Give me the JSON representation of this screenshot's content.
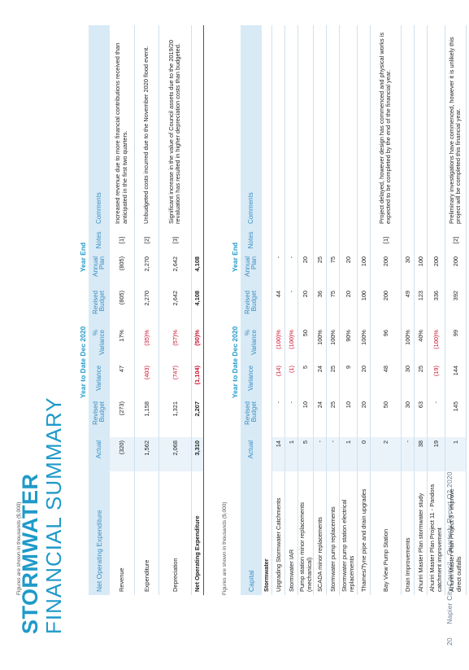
{
  "page": {
    "number": "20",
    "footer": "Napier City Council - Quarterly Report Q2 2020/21",
    "title_line1": "STORMWATER",
    "title_line2": "FINANCIAL SUMMARY"
  },
  "table1": {
    "note": "Figures are shown in thousands ($,000)",
    "group_ytd": "Year to Date Dec 2020",
    "group_ye": "Year End",
    "headers": [
      "Net Operating Expenditure",
      "Actual",
      "Revised Budget",
      "Variance",
      "% Variance",
      "Revised Budget",
      "Annual Plan",
      "Notes",
      "Comments"
    ],
    "rows": [
      {
        "label": "Revenue",
        "actual": "(320)",
        "rev_budget": "(273)",
        "variance": "47",
        "pct": "17%",
        "ye_rev": "(805)",
        "ye_plan": "(805)",
        "notes": "[1]",
        "comment": "Increased revenue due to more financial contributions received than anticipated in the first two quarters."
      },
      {
        "label": "Expenditure",
        "actual": "1,562",
        "rev_budget": "1,158",
        "variance": "(403)",
        "pct": "(35)%",
        "ye_rev": "2,270",
        "ye_plan": "2,270",
        "notes": "[2]",
        "comment": "Unbudgeted costs incurred due to the November 2020 flood event."
      },
      {
        "label": "Depreciation",
        "actual": "2,068",
        "rev_budget": "1,321",
        "variance": "(747)",
        "pct": "(57)%",
        "ye_rev": "2,642",
        "ye_plan": "2,642",
        "notes": "[3]",
        "comment": "Significant increase in the value of Council assets due to the 2019/20 revaluation has resulted in higher depreciation costs than budgeted."
      },
      {
        "label": "Net Operating Expenditure",
        "actual": "3,310",
        "rev_budget": "2,207",
        "variance": "(1,104)",
        "pct": "(50)%",
        "ye_rev": "4,108",
        "ye_plan": "4,108",
        "notes": "",
        "comment": ""
      }
    ]
  },
  "table2": {
    "note": "Figures are shown in thousands ($,000)",
    "group_ytd": "Year to Date Dec 2020",
    "group_ye": "Year End",
    "headers": [
      "Capital",
      "Actual",
      "Revised Budget",
      "Variance",
      "% Variance",
      "Revised Budget",
      "Annual Plan",
      "Notes",
      "Comments"
    ],
    "section": "Stormwater",
    "rows": [
      {
        "label": "Upgrading Stormwater Catchments",
        "actual": "14",
        "rev_budget": "-",
        "variance": "(14)",
        "pct": "(100)%",
        "ye_rev": "44",
        "ye_plan": "-",
        "notes": "",
        "comment": ""
      },
      {
        "label": "Stormwater IAR",
        "actual": "1",
        "rev_budget": "-",
        "variance": "(1)",
        "pct": "(100)%",
        "ye_rev": "-",
        "ye_plan": "-",
        "notes": "",
        "comment": ""
      },
      {
        "label": "Pump station minor replacements (mechanical)",
        "actual": "5",
        "rev_budget": "10",
        "variance": "5",
        "pct": "50",
        "ye_rev": "20",
        "ye_plan": "20",
        "notes": "",
        "comment": ""
      },
      {
        "label": "SCADA minor replacements",
        "actual": "-",
        "rev_budget": "24",
        "variance": "24",
        "pct": "100%",
        "ye_rev": "36",
        "ye_plan": "25",
        "notes": "",
        "comment": ""
      },
      {
        "label": "Stormwater pump replacements",
        "actual": "-",
        "rev_budget": "25",
        "variance": "25",
        "pct": "100%",
        "ye_rev": "75",
        "ye_plan": "75",
        "notes": "",
        "comment": ""
      },
      {
        "label": "Stormwater pump station electrical replacements",
        "actual": "1",
        "rev_budget": "10",
        "variance": "9",
        "pct": "90%",
        "ye_rev": "20",
        "ye_plan": "20",
        "notes": "",
        "comment": ""
      },
      {
        "label": "Thames/Tyne pipe and drain upgrades",
        "actual": "0",
        "rev_budget": "20",
        "variance": "20",
        "pct": "100%",
        "ye_rev": "100",
        "ye_plan": "100",
        "notes": "",
        "comment": ""
      },
      {
        "label": "Bay View Pump Station",
        "actual": "2",
        "rev_budget": "50",
        "variance": "48",
        "pct": "96",
        "ye_rev": "200",
        "ye_plan": "200",
        "notes": "[1]",
        "comment": "Project delayed, however design has commenced and physical works is expected to be completed by the end of the financial year."
      },
      {
        "label": "Drain Improvements",
        "actual": "-",
        "rev_budget": "30",
        "variance": "30",
        "pct": "100%",
        "ye_rev": "49",
        "ye_plan": "30",
        "notes": "",
        "comment": ""
      },
      {
        "label": "Ahuriri Master Plan stormwater study",
        "actual": "38",
        "rev_budget": "63",
        "variance": "25",
        "pct": "40%",
        "ye_rev": "123",
        "ye_plan": "100",
        "notes": "",
        "comment": ""
      },
      {
        "label": "Ahuriri Master Plan Project 11 - Pandora catchment improvement",
        "actual": "19",
        "rev_budget": "-",
        "variance": "(19)",
        "pct": "(100)%",
        "ye_rev": "336",
        "ye_plan": "200",
        "notes": "",
        "comment": ""
      },
      {
        "label": "Ahuriri Master Plan Project 3 - improve direct outfalls",
        "actual": "1",
        "rev_budget": "145",
        "variance": "144",
        "pct": "99",
        "ye_rev": "392",
        "ye_plan": "200",
        "notes": "[2]",
        "comment": "Preliminary investigations have commenced, however it is unlikely this project will be completed this financial year."
      }
    ]
  }
}
